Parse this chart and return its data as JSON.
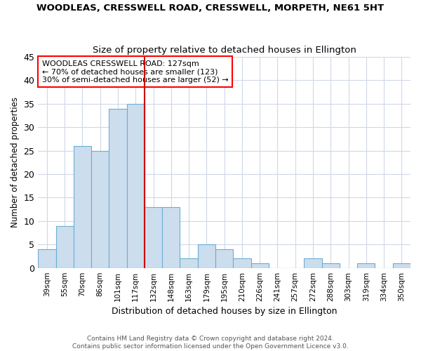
{
  "title": "WOODLEAS, CRESSWELL ROAD, CRESSWELL, MORPETH, NE61 5HT",
  "subtitle": "Size of property relative to detached houses in Ellington",
  "xlabel": "Distribution of detached houses by size in Ellington",
  "ylabel": "Number of detached properties",
  "categories": [
    "39sqm",
    "55sqm",
    "70sqm",
    "86sqm",
    "101sqm",
    "117sqm",
    "132sqm",
    "148sqm",
    "163sqm",
    "179sqm",
    "195sqm",
    "210sqm",
    "226sqm",
    "241sqm",
    "257sqm",
    "272sqm",
    "288sqm",
    "303sqm",
    "319sqm",
    "334sqm",
    "350sqm"
  ],
  "values": [
    4,
    9,
    26,
    25,
    34,
    35,
    13,
    13,
    2,
    5,
    4,
    2,
    1,
    0,
    0,
    2,
    1,
    0,
    1,
    0,
    1
  ],
  "bar_color": "#ccdded",
  "bar_edgecolor": "#6aafd6",
  "grid_color": "#d0d8e8",
  "vline_color": "#cc0000",
  "vline_index": 6,
  "annotation_title": "WOODLEAS CRESSWELL ROAD: 127sqm",
  "annotation_line1": "← 70% of detached houses are smaller (123)",
  "annotation_line2": "30% of semi-detached houses are larger (52) →",
  "ylim": [
    0,
    45
  ],
  "yticks": [
    0,
    5,
    10,
    15,
    20,
    25,
    30,
    35,
    40,
    45
  ],
  "footnote1": "Contains HM Land Registry data © Crown copyright and database right 2024.",
  "footnote2": "Contains public sector information licensed under the Open Government Licence v3.0."
}
